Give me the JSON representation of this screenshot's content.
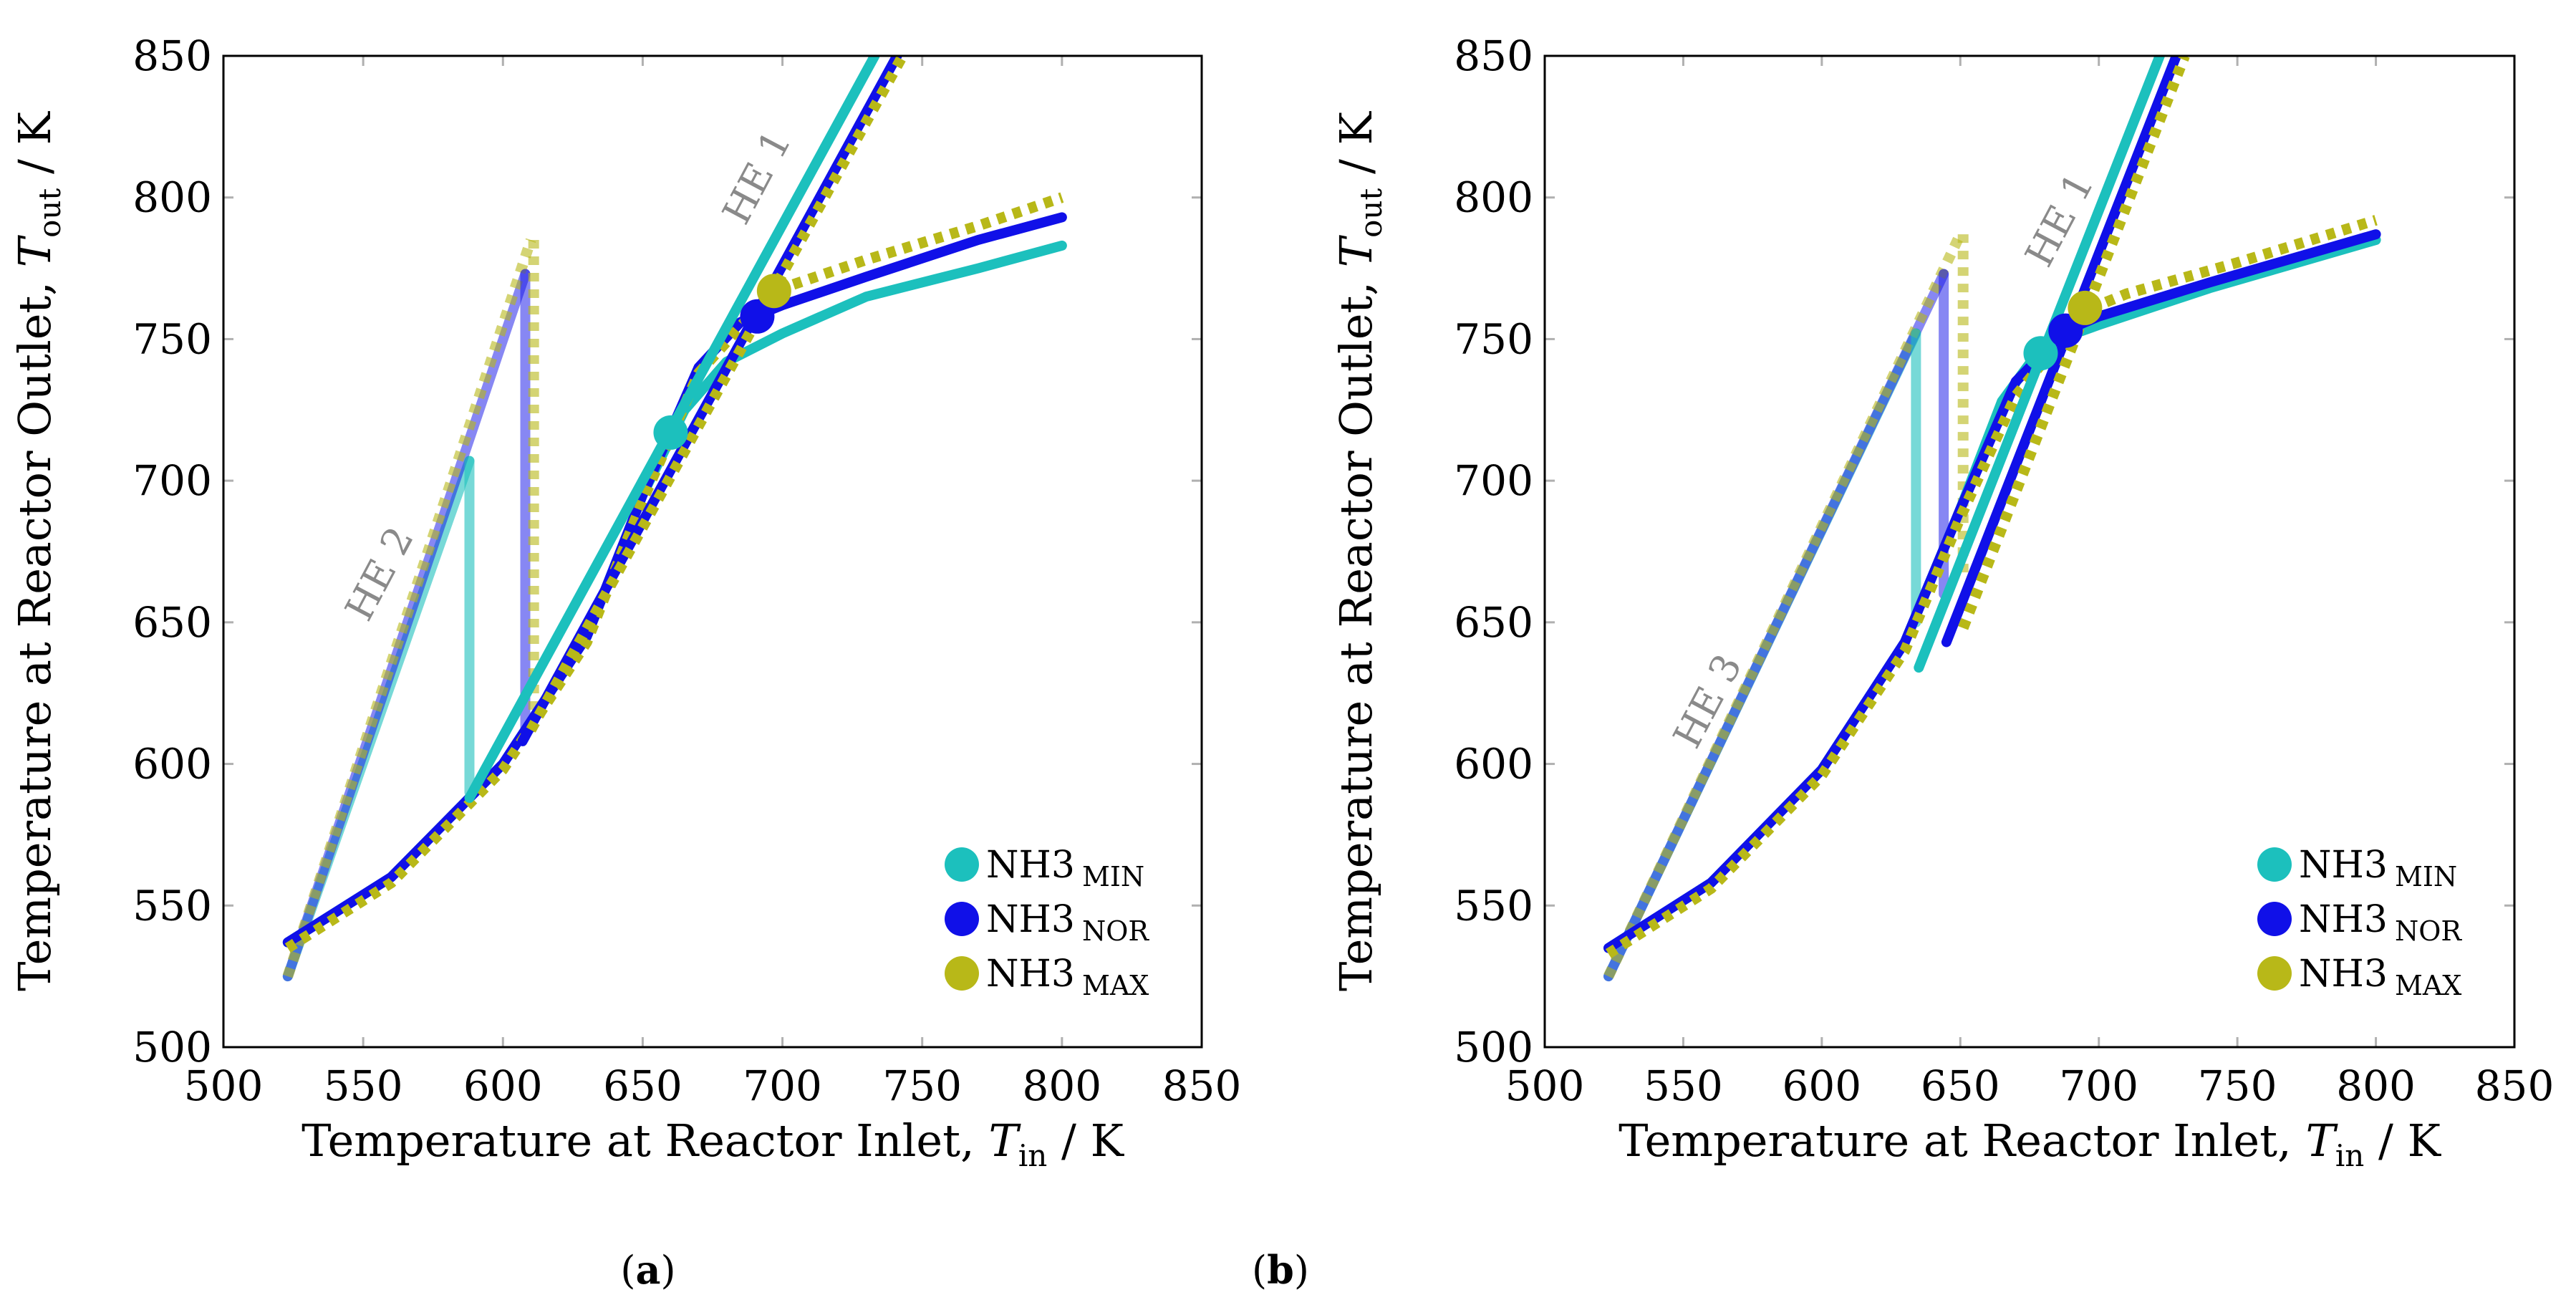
{
  "colors": {
    "NH3_MIN": "#1cc0bd",
    "NH3_NOR": "#1010e8",
    "NH3_MAX": "#b8b818",
    "annotation": "#8a8a8a",
    "axis": "#000000",
    "tick": "#b0b0b0"
  },
  "chart_data": [
    {
      "id": "a",
      "type": "line",
      "caption_letter": "a",
      "caption_open": "(",
      "caption_close": ")",
      "xlabel_main": "Temperature at Reactor Inlet, ",
      "xlabel_var": "T",
      "xlabel_sub": "in",
      "xlabel_unit": " / K",
      "ylabel_main": "Temperature at Reactor Outlet, ",
      "ylabel_var": "T",
      "ylabel_sub": "out",
      "ylabel_unit": " / K",
      "xlim": [
        500,
        850
      ],
      "ylim": [
        500,
        850
      ],
      "xticks": [
        "500",
        "550",
        "600",
        "650",
        "700",
        "750",
        "800",
        "850"
      ],
      "yticks": [
        "500",
        "550",
        "600",
        "650",
        "700",
        "750",
        "800",
        "850"
      ],
      "legend_position": "bottom-right",
      "legend": [
        {
          "key": "NH3_MIN",
          "base": "NH",
          "num": "3",
          "sub": "MIN"
        },
        {
          "key": "NH3_NOR",
          "base": "NH",
          "num": "3",
          "sub": "NOR"
        },
        {
          "key": "NH3_MAX",
          "base": "NH",
          "num": "3",
          "sub": "MAX"
        }
      ],
      "annotations": [
        {
          "text": "HE 1",
          "x": 695,
          "y": 805
        },
        {
          "text": "HE 2",
          "x": 560,
          "y": 665
        }
      ],
      "series": [
        {
          "name": "NH3 MIN reactor curve",
          "key": "NH3_MIN",
          "style": "solid",
          "x": [
            523,
            560,
            600,
            630,
            650,
            665,
            680,
            700,
            730,
            770,
            800
          ],
          "y": [
            537,
            560,
            600,
            645,
            695,
            725,
            742,
            752,
            765,
            775,
            783
          ]
        },
        {
          "name": "NH3 NOR reactor curve",
          "key": "NH3_NOR",
          "style": "solid",
          "x": [
            523,
            560,
            600,
            630,
            650,
            670,
            685,
            700,
            730,
            770,
            800
          ],
          "y": [
            537,
            560,
            600,
            645,
            695,
            740,
            756,
            762,
            772,
            785,
            793
          ]
        },
        {
          "name": "NH3 MAX reactor curve",
          "key": "NH3_MAX",
          "style": "dotted",
          "x": [
            523,
            560,
            600,
            630,
            650,
            670,
            690,
            700,
            730,
            770,
            800
          ],
          "y": [
            535,
            558,
            598,
            643,
            693,
            738,
            760,
            768,
            778,
            790,
            800
          ]
        },
        {
          "name": "HE 2 line NH3 MIN",
          "key": "NH3_MIN",
          "style": "solid",
          "alpha": 0.6,
          "x": [
            523,
            588
          ],
          "y": [
            525,
            707
          ]
        },
        {
          "name": "HE 2 line NH3 NOR",
          "key": "NH3_NOR",
          "style": "solid",
          "alpha": 0.5,
          "x": [
            523,
            608
          ],
          "y": [
            525,
            773
          ]
        },
        {
          "name": "HE 2 line NH3 MAX",
          "key": "NH3_MAX",
          "style": "dotted",
          "alpha": 0.6,
          "x": [
            523,
            610
          ],
          "y": [
            525,
            785
          ]
        },
        {
          "name": "HE 2 drop NH3 MIN",
          "key": "NH3_MIN",
          "style": "solid",
          "alpha": 0.6,
          "x": [
            588,
            588
          ],
          "y": [
            707,
            590
          ]
        },
        {
          "name": "HE 2 drop NH3 NOR",
          "key": "NH3_NOR",
          "style": "solid",
          "alpha": 0.5,
          "x": [
            608,
            608
          ],
          "y": [
            773,
            612
          ]
        },
        {
          "name": "HE 2 drop NH3 MAX",
          "key": "NH3_MAX",
          "style": "dotted",
          "alpha": 0.6,
          "x": [
            611,
            611
          ],
          "y": [
            785,
            618
          ]
        },
        {
          "name": "HE 1 line NH3 MIN",
          "key": "NH3_MIN",
          "style": "solid",
          "x": [
            588,
            733
          ],
          "y": [
            588,
            850
          ]
        },
        {
          "name": "HE 1 line NH3 NOR",
          "key": "NH3_NOR",
          "style": "solid",
          "x": [
            607,
            741
          ],
          "y": [
            608,
            850
          ]
        },
        {
          "name": "HE 1 line NH3 MAX",
          "key": "NH3_MAX",
          "style": "dotted",
          "x": [
            610,
            743
          ],
          "y": [
            612,
            850
          ]
        }
      ],
      "points": [
        {
          "key": "NH3_MIN",
          "x": 660,
          "y": 717
        },
        {
          "key": "NH3_NOR",
          "x": 691,
          "y": 758
        },
        {
          "key": "NH3_MAX",
          "x": 697,
          "y": 767
        }
      ]
    },
    {
      "id": "b",
      "type": "line",
      "caption_letter": "b",
      "caption_open": "(",
      "caption_close": ")",
      "xlabel_main": "Temperature at Reactor Inlet, ",
      "xlabel_var": "T",
      "xlabel_sub": "in",
      "xlabel_unit": " / K",
      "ylabel_main": "Temperature at Reactor Outlet, ",
      "ylabel_var": "T",
      "ylabel_sub": "out",
      "ylabel_unit": " / K",
      "xlim": [
        500,
        850
      ],
      "ylim": [
        500,
        850
      ],
      "xticks": [
        "500",
        "550",
        "600",
        "650",
        "700",
        "750",
        "800",
        "850"
      ],
      "yticks": [
        "500",
        "550",
        "600",
        "650",
        "700",
        "750",
        "800",
        "850"
      ],
      "legend_position": "bottom-right",
      "legend": [
        {
          "key": "NH3_MIN",
          "base": "NH",
          "num": "3",
          "sub": "MIN"
        },
        {
          "key": "NH3_NOR",
          "base": "NH",
          "num": "3",
          "sub": "NOR"
        },
        {
          "key": "NH3_MAX",
          "base": "NH",
          "num": "3",
          "sub": "MAX"
        }
      ],
      "annotations": [
        {
          "text": "HE 1",
          "x": 690,
          "y": 790
        },
        {
          "text": "HE 3",
          "x": 563,
          "y": 620
        }
      ],
      "series": [
        {
          "name": "NH3 MIN reactor curve",
          "key": "NH3_MIN",
          "style": "solid",
          "x": [
            523,
            560,
            600,
            630,
            650,
            665,
            680,
            700,
            740,
            800
          ],
          "y": [
            535,
            558,
            598,
            643,
            690,
            728,
            748,
            755,
            768,
            785
          ]
        },
        {
          "name": "NH3 NOR reactor curve",
          "key": "NH3_NOR",
          "style": "solid",
          "x": [
            523,
            560,
            600,
            630,
            650,
            670,
            688,
            700,
            740,
            800
          ],
          "y": [
            535,
            558,
            598,
            643,
            690,
            735,
            753,
            758,
            770,
            787
          ]
        },
        {
          "name": "NH3 MAX reactor curve",
          "key": "NH3_MAX",
          "style": "dotted",
          "x": [
            523,
            560,
            600,
            630,
            650,
            670,
            695,
            710,
            750,
            800
          ],
          "y": [
            533,
            556,
            596,
            640,
            687,
            730,
            760,
            766,
            777,
            792
          ]
        },
        {
          "name": "HE 3 line NH3 MIN",
          "key": "NH3_MIN",
          "style": "solid",
          "alpha": 0.6,
          "x": [
            523,
            634
          ],
          "y": [
            525,
            752
          ]
        },
        {
          "name": "HE 3 line NH3 NOR",
          "key": "NH3_NOR",
          "style": "solid",
          "alpha": 0.5,
          "x": [
            523,
            644
          ],
          "y": [
            525,
            773
          ]
        },
        {
          "name": "HE 3 line NH3 MAX",
          "key": "NH3_MAX",
          "style": "dotted",
          "alpha": 0.6,
          "x": [
            523,
            650
          ],
          "y": [
            525,
            787
          ]
        },
        {
          "name": "HE 3 drop NH3 MIN",
          "key": "NH3_MIN",
          "style": "solid",
          "alpha": 0.6,
          "x": [
            634,
            634
          ],
          "y": [
            752,
            650
          ]
        },
        {
          "name": "HE 3 drop NH3 NOR",
          "key": "NH3_NOR",
          "style": "solid",
          "alpha": 0.5,
          "x": [
            644,
            644
          ],
          "y": [
            773,
            660
          ]
        },
        {
          "name": "HE 3 drop NH3 MAX",
          "key": "NH3_MAX",
          "style": "dotted",
          "alpha": 0.6,
          "x": [
            651,
            651
          ],
          "y": [
            787,
            666
          ]
        },
        {
          "name": "HE 1 line NH3 MIN",
          "key": "NH3_MIN",
          "style": "solid",
          "x": [
            635,
            722
          ],
          "y": [
            634,
            850
          ]
        },
        {
          "name": "HE 1 line NH3 NOR",
          "key": "NH3_NOR",
          "style": "solid",
          "x": [
            645,
            728
          ],
          "y": [
            643,
            850
          ]
        },
        {
          "name": "HE 1 line NH3 MAX",
          "key": "NH3_MAX",
          "style": "dotted",
          "x": [
            651,
            731
          ],
          "y": [
            648,
            850
          ]
        }
      ],
      "points": [
        {
          "key": "NH3_MIN",
          "x": 679,
          "y": 745
        },
        {
          "key": "NH3_NOR",
          "x": 688,
          "y": 753
        },
        {
          "key": "NH3_MAX",
          "x": 695,
          "y": 761
        }
      ]
    }
  ]
}
